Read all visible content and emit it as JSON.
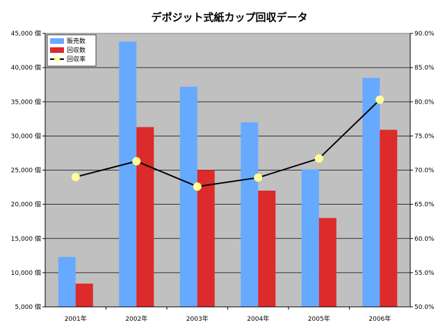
{
  "chart_data": {
    "type": "bar",
    "title": "デポジット式紙カップ回収データ",
    "categories": [
      "2001年",
      "2002年",
      "2003年",
      "2004年",
      "2005年",
      "2006年"
    ],
    "series": [
      {
        "name": "販売数",
        "kind": "bar",
        "axis": "left",
        "color": "#66aaff",
        "values": [
          12300,
          43800,
          37200,
          32000,
          25100,
          38500
        ]
      },
      {
        "name": "回収数",
        "kind": "bar",
        "axis": "left",
        "color": "#dd2a2a",
        "values": [
          8400,
          31300,
          25000,
          22000,
          18000,
          30900
        ]
      },
      {
        "name": "回収率",
        "kind": "line",
        "axis": "right",
        "color": "#000000",
        "marker_color": "#ffff99",
        "values": [
          69.0,
          71.3,
          67.6,
          68.9,
          71.7,
          80.3
        ]
      }
    ],
    "y_left": {
      "min": 5000,
      "max": 45000,
      "step": 5000,
      "ticks": [
        "5,000 個",
        "10,000 個",
        "15,000 個",
        "20,000 個",
        "25,000 個",
        "30,000 個",
        "35,000 個",
        "40,000 個",
        "45,000 個"
      ]
    },
    "y_right": {
      "min": 50,
      "max": 90,
      "step": 5,
      "ticks": [
        "50.0%",
        "55.0%",
        "60.0%",
        "65.0%",
        "70.0%",
        "75.0%",
        "80.0%",
        "85.0%",
        "90.0%"
      ]
    },
    "plot_background": "#c0c0c0",
    "grid": true,
    "legend": "top-left"
  }
}
